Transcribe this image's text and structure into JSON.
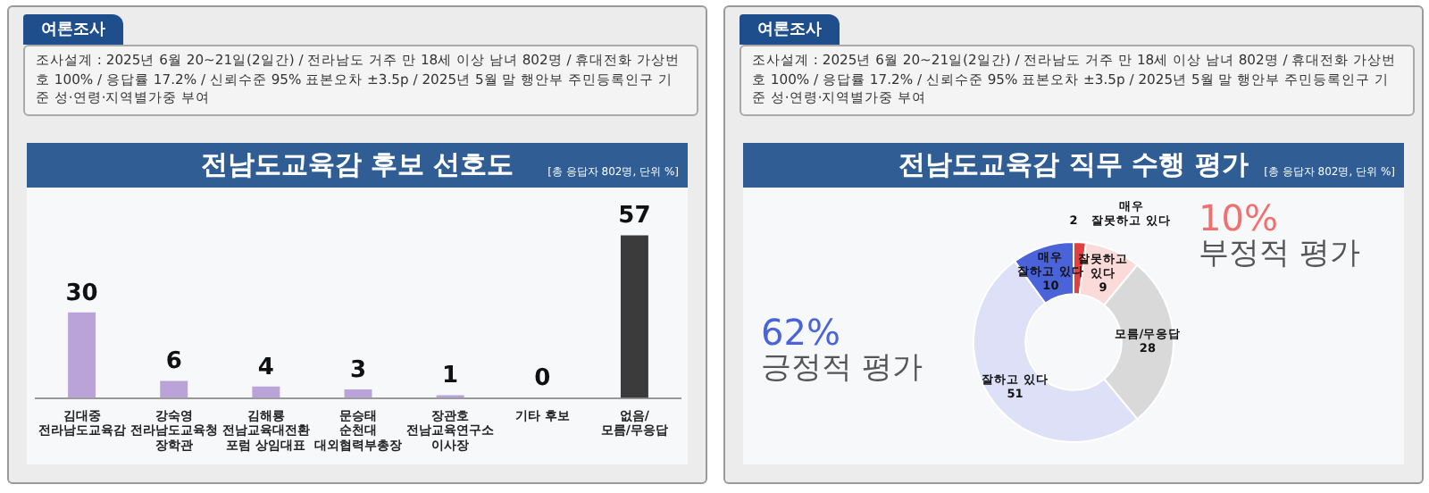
{
  "chart_data": [
    {
      "type": "bar",
      "title": "전남도교육감 후보 선호도",
      "subtitle": "[총 응답자 802명, 단위 %]",
      "annotations": [
        "여론조사",
        "조사설계 : 2025년 6월 20~21일(2일간) / 전라남도 거주 만 18세 이상 남녀 802명 / 휴대전화 가상번호 100% / 응답률 17.2% / 신뢰수준 95% 표본오차 ±3.5p / 2025년 5월 말 행안부 주민등록인구 기준 성·연령·지역별가중 부여"
      ],
      "categories": [
        "김대중\n전라남도교육감",
        "강숙영\n전라남도교육청\n장학관",
        "김해룡\n전남교육대전환\n포럼 상임대표",
        "문승태\n순천대\n대외협력부총장",
        "장관호\n전남교육연구소\n이사장",
        "기타 후보",
        "없음/\n모름/무응답"
      ],
      "values": [
        30,
        6,
        4,
        3,
        1,
        0,
        57
      ],
      "colors": [
        "#b9a3d8",
        "#b9a3d8",
        "#b9a3d8",
        "#b9a3d8",
        "#b9a3d8",
        "#b9a3d8",
        "#3b3b3b"
      ],
      "data_labels": true,
      "legend": false,
      "grid": false
    },
    {
      "type": "donut",
      "title": "전남도교육감 직무 수행 평가",
      "subtitle": "[총 응답자 802명, 단위 %]",
      "annotations": [
        "여론조사",
        "조사설계 : 2025년 6월 20~21일(2일간) / 전라남도 거주 만 18세 이상 남녀 802명 / 휴대전화 가상번호 100% / 응답률 17.2% / 신뢰수준 95% 표본오차 ±3.5p / 2025년 5월 말 행안부 주민등록인구 기준 성·연령·지역별가중 부여",
        "62%\n긍정적 평가",
        "10%\n부정적 평가"
      ],
      "categories": [
        "매우\n잘못하고 있다",
        "잘못하고\n있다",
        "모름/무응답",
        "잘하고 있다",
        "매우\n잘하고 있다"
      ],
      "values": [
        2,
        9,
        28,
        51,
        10
      ],
      "colors": [
        "#e0403f",
        "#fbdada",
        "#d9d9d9",
        "#dde0f7",
        "#4a63d8"
      ],
      "data_labels": true,
      "legend": false
    }
  ]
}
